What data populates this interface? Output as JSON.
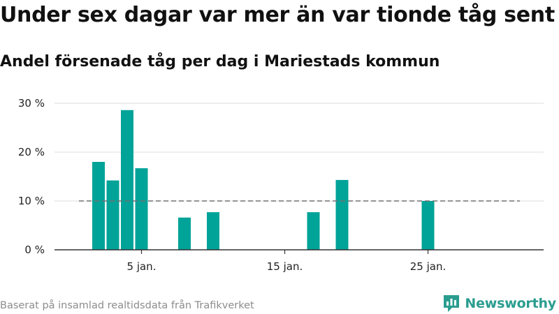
{
  "header": {
    "title": "Under sex dagar var mer än var tionde tåg sent",
    "subtitle": "Andel försenade tåg per dag i Mariestads kommun"
  },
  "footer": {
    "source": "Baserat på insamlad realtidsdata från Trafikverket",
    "brand": "Newsworthy"
  },
  "colors": {
    "bar": "#00a398",
    "reference_line": "#707070",
    "grid": "#dcdcdc",
    "axis": "#333333",
    "brand": "#2a9d8f"
  },
  "chart_data": {
    "type": "bar",
    "x_unit": "day of January",
    "x": [
      1,
      2,
      3,
      4,
      5,
      6,
      7,
      8,
      9,
      10,
      11,
      12,
      13,
      14,
      15,
      16,
      17,
      18,
      19,
      20,
      21,
      22,
      23,
      24,
      25,
      26,
      27,
      28,
      29,
      30,
      31
    ],
    "values": [
      0,
      18,
      14.2,
      28.6,
      16.7,
      0,
      0,
      6.6,
      0,
      7.7,
      0,
      0,
      0,
      0,
      0,
      0,
      7.7,
      0,
      14.3,
      0,
      0,
      0,
      0,
      0,
      10,
      0,
      0,
      0,
      0,
      0,
      0
    ],
    "ylim": [
      0,
      30
    ],
    "yticks": [
      0,
      10,
      20,
      30
    ],
    "ytick_labels": [
      "0 %",
      "10 %",
      "20 %",
      "30 %"
    ],
    "xticks": [
      5,
      15,
      25
    ],
    "xtick_labels": [
      "5 jan.",
      "15 jan.",
      "25 jan."
    ],
    "reference_line": {
      "value": 10,
      "style": "dashed"
    },
    "grid": true,
    "xlabel": "",
    "ylabel": ""
  }
}
